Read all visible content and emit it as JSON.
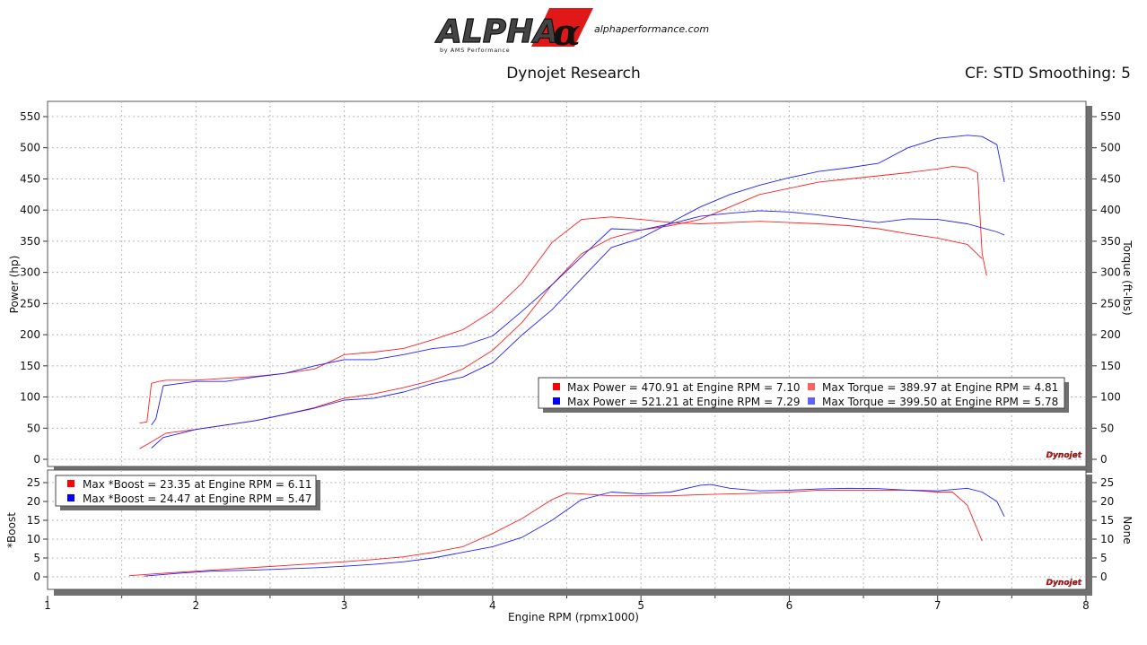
{
  "header": {
    "logo_text": "ALPHA",
    "logo_symbol": "α",
    "logo_byline": "by AMS Performance",
    "website": "alphaperformance.com",
    "title": "Dynojet Research",
    "correction": "CF: STD Smoothing: 5",
    "watermark": "Dynojet"
  },
  "colors": {
    "run1": "#ff2020",
    "run2": "#2020ff",
    "run1_marker": "#ff0000",
    "run2_marker": "#0000ff",
    "run1_torque_marker": "#ff6060",
    "run2_torque_marker": "#6060ff",
    "grid": "#b8b8b8",
    "shadow": "#707070"
  },
  "chart_data": [
    {
      "type": "line",
      "xlabel": "Engine RPM (rpmx1000)",
      "ylabel": "Power (hp)",
      "y2label": "Torque (ft-lbs)",
      "xlim": [
        1,
        8
      ],
      "ylim": [
        0,
        550
      ],
      "y2lim": [
        0,
        550
      ],
      "xticks": [
        "1",
        "2",
        "3",
        "4",
        "5",
        "6",
        "7",
        "8"
      ],
      "yticks": [
        "0",
        "50",
        "100",
        "150",
        "200",
        "250",
        "300",
        "350",
        "400",
        "450",
        "500",
        "550"
      ],
      "grid": true,
      "legend": {
        "placement": "bottom-right",
        "entries": [
          "Max Power = 470.91 at Engine RPM = 7.10",
          "Max Power = 521.21 at Engine RPM = 7.29",
          "Max Torque = 389.97 at Engine RPM = 4.81",
          "Max Torque = 399.50 at Engine RPM = 5.78"
        ]
      },
      "series": [
        {
          "key": "power-run1",
          "run": 1,
          "x": [
            1.62,
            1.7,
            1.8,
            2.0,
            2.2,
            2.4,
            2.6,
            2.8,
            3.0,
            3.2,
            3.4,
            3.6,
            3.8,
            4.0,
            4.2,
            4.4,
            4.6,
            4.8,
            5.0,
            5.2,
            5.4,
            5.6,
            5.8,
            6.0,
            6.2,
            6.4,
            6.6,
            6.8,
            7.0,
            7.1,
            7.2,
            7.27,
            7.3,
            7.33
          ],
          "values": [
            17,
            28,
            42,
            48,
            55,
            62,
            72,
            83,
            98,
            105,
            115,
            127,
            145,
            175,
            220,
            280,
            330,
            355,
            368,
            375,
            385,
            405,
            425,
            435,
            445,
            450,
            455,
            460,
            466,
            470,
            468,
            460,
            330,
            295
          ]
        },
        {
          "key": "power-run2",
          "run": 2,
          "x": [
            1.7,
            1.78,
            1.9,
            2.0,
            2.2,
            2.4,
            2.6,
            2.8,
            3.0,
            3.2,
            3.4,
            3.6,
            3.8,
            4.0,
            4.2,
            4.4,
            4.6,
            4.8,
            5.0,
            5.2,
            5.4,
            5.6,
            5.8,
            6.0,
            6.2,
            6.4,
            6.6,
            6.8,
            7.0,
            7.2,
            7.3,
            7.4,
            7.45
          ],
          "values": [
            18,
            35,
            42,
            48,
            55,
            62,
            72,
            82,
            95,
            98,
            108,
            122,
            132,
            155,
            200,
            240,
            290,
            340,
            355,
            380,
            405,
            425,
            440,
            452,
            462,
            468,
            475,
            500,
            515,
            520,
            518,
            505,
            445
          ]
        },
        {
          "key": "torque-run1",
          "run": 1,
          "x": [
            1.62,
            1.67,
            1.7,
            1.75,
            1.8,
            2.0,
            2.2,
            2.4,
            2.6,
            2.8,
            3.0,
            3.2,
            3.4,
            3.6,
            3.8,
            4.0,
            4.2,
            4.4,
            4.6,
            4.8,
            5.0,
            5.2,
            5.4,
            5.6,
            5.8,
            6.0,
            6.2,
            6.4,
            6.6,
            6.8,
            7.0,
            7.2,
            7.3
          ],
          "values": [
            58,
            60,
            122,
            125,
            127,
            127,
            130,
            133,
            138,
            145,
            168,
            172,
            178,
            192,
            208,
            238,
            283,
            348,
            385,
            389,
            385,
            380,
            378,
            380,
            382,
            380,
            378,
            375,
            370,
            362,
            355,
            345,
            322
          ]
        },
        {
          "key": "torque-run2",
          "run": 2,
          "x": [
            1.7,
            1.73,
            1.78,
            1.9,
            2.0,
            2.2,
            2.4,
            2.6,
            2.8,
            3.0,
            3.2,
            3.4,
            3.6,
            3.8,
            4.0,
            4.2,
            4.4,
            4.6,
            4.8,
            5.0,
            5.2,
            5.4,
            5.6,
            5.8,
            6.0,
            6.2,
            6.4,
            6.6,
            6.8,
            7.0,
            7.2,
            7.4,
            7.45
          ],
          "values": [
            55,
            65,
            118,
            122,
            125,
            125,
            132,
            138,
            150,
            160,
            160,
            168,
            178,
            182,
            198,
            238,
            280,
            325,
            370,
            368,
            378,
            390,
            395,
            399,
            397,
            392,
            386,
            380,
            386,
            385,
            378,
            365,
            360
          ]
        }
      ]
    },
    {
      "type": "line",
      "xlabel": "Engine RPM (rpmx1000)",
      "ylabel": "*Boost",
      "y2label": "None",
      "xlim": [
        1,
        8
      ],
      "ylim": [
        0,
        25
      ],
      "y2lim": [
        0,
        25
      ],
      "xticks": [
        "1",
        "2",
        "3",
        "4",
        "5",
        "6",
        "7",
        "8"
      ],
      "yticks": [
        "0",
        "5",
        "10",
        "15",
        "20",
        "25"
      ],
      "grid": true,
      "legend": {
        "placement": "top-left",
        "entries": [
          "Max *Boost = 23.35 at Engine RPM = 6.11",
          "Max *Boost = 24.47 at Engine RPM = 5.47"
        ]
      },
      "series": [
        {
          "key": "boost-run1",
          "run": 1,
          "x": [
            1.55,
            1.8,
            2.0,
            2.2,
            2.4,
            2.6,
            2.8,
            3.0,
            3.2,
            3.4,
            3.6,
            3.8,
            4.0,
            4.2,
            4.4,
            4.5,
            4.6,
            4.8,
            5.0,
            5.2,
            5.4,
            5.6,
            5.8,
            6.0,
            6.2,
            6.4,
            6.6,
            6.8,
            7.0,
            7.1,
            7.2,
            7.3
          ],
          "values": [
            0.3,
            1.0,
            1.5,
            2.0,
            2.5,
            3.0,
            3.5,
            4.0,
            4.6,
            5.3,
            6.5,
            8.0,
            11.5,
            15.5,
            20.5,
            22.2,
            22.0,
            21.5,
            21.5,
            21.5,
            21.8,
            22.0,
            22.2,
            22.5,
            23.0,
            23.0,
            23.0,
            23.0,
            22.5,
            22.5,
            19.0,
            9.5
          ]
        },
        {
          "key": "boost-run2",
          "run": 2,
          "x": [
            1.65,
            1.9,
            2.1,
            2.4,
            2.6,
            2.8,
            3.0,
            3.2,
            3.4,
            3.6,
            3.8,
            4.0,
            4.2,
            4.4,
            4.6,
            4.8,
            5.0,
            5.2,
            5.4,
            5.47,
            5.6,
            5.8,
            6.0,
            6.2,
            6.4,
            6.6,
            6.8,
            7.0,
            7.2,
            7.3,
            7.4,
            7.45
          ],
          "values": [
            0.2,
            1.0,
            1.5,
            1.8,
            2.1,
            2.4,
            2.8,
            3.3,
            4.0,
            5.0,
            6.5,
            8.0,
            10.5,
            15.0,
            20.5,
            22.5,
            22.0,
            22.5,
            24.3,
            24.5,
            23.5,
            22.8,
            23.0,
            23.3,
            23.5,
            23.4,
            23.0,
            22.8,
            23.5,
            22.5,
            20.0,
            16.0
          ]
        }
      ]
    }
  ]
}
